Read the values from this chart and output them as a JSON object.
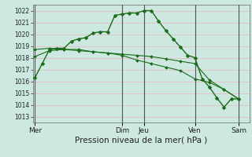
{
  "bg_color": "#cce8e0",
  "grid_color": "#e8b8b8",
  "line_color": "#1a6b1a",
  "marker_color": "#1a6b1a",
  "xlabel": "Pression niveau de la mer( hPa )",
  "ylim": [
    1012.5,
    1022.5
  ],
  "yticks": [
    1013,
    1014,
    1015,
    1016,
    1017,
    1018,
    1019,
    1020,
    1021,
    1022
  ],
  "x_day_labels": [
    "Mer",
    "Dim",
    "Jeu",
    "Ven",
    "Sam"
  ],
  "x_day_positions": [
    0,
    12,
    15,
    22,
    28
  ],
  "xlim": [
    -0.3,
    29.5
  ],
  "line1_x": [
    0,
    1,
    2,
    3,
    4,
    5,
    6,
    7,
    8,
    9,
    10,
    11,
    12,
    13,
    14,
    15,
    16,
    17,
    18,
    19,
    20,
    21,
    22,
    23,
    24,
    25,
    26,
    27,
    28
  ],
  "line1_y": [
    1016.3,
    1017.5,
    1018.7,
    1018.8,
    1018.8,
    1019.4,
    1019.6,
    1019.7,
    1020.1,
    1020.2,
    1020.2,
    1021.6,
    1021.7,
    1021.8,
    1021.8,
    1022.0,
    1022.0,
    1021.1,
    1020.3,
    1019.6,
    1018.9,
    1018.2,
    1018.0,
    1016.2,
    1015.5,
    1014.6,
    1013.8,
    1014.5,
    1014.5
  ],
  "line2_x": [
    0,
    2,
    4,
    6,
    8,
    10,
    12,
    14,
    16,
    18,
    20,
    22,
    24,
    26,
    28
  ],
  "line2_y": [
    1018.1,
    1018.6,
    1018.7,
    1018.7,
    1018.5,
    1018.4,
    1018.3,
    1018.2,
    1018.1,
    1017.9,
    1017.7,
    1017.5,
    1016.1,
    1015.3,
    1014.5
  ],
  "line3_x": [
    0,
    2,
    4,
    6,
    8,
    10,
    12,
    14,
    16,
    18,
    20,
    22,
    24,
    26,
    28
  ],
  "line3_y": [
    1018.7,
    1018.8,
    1018.7,
    1018.6,
    1018.5,
    1018.4,
    1018.2,
    1017.8,
    1017.5,
    1017.2,
    1016.9,
    1016.2,
    1015.9,
    1015.3,
    1014.5
  ],
  "vline_color": "#555555",
  "figsize": [
    3.2,
    2.0
  ],
  "dpi": 100
}
